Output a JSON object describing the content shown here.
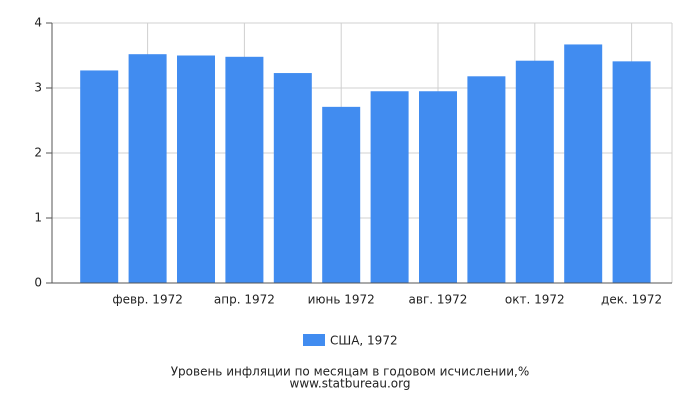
{
  "chart_data": {
    "type": "bar",
    "title": "Уровень инфляции по месяцам в годовом исчислении,%",
    "source": "www.statbureau.org",
    "categories": [
      null,
      "февр. 1972",
      null,
      "апр. 1972",
      null,
      "июнь 1972",
      null,
      "авг. 1972",
      null,
      "окт. 1972",
      null,
      "дек. 1972"
    ],
    "series": [
      {
        "name": "США, 1972",
        "color": "#418cf0",
        "values": [
          3.27,
          3.52,
          3.5,
          3.48,
          3.23,
          2.71,
          2.95,
          2.95,
          3.18,
          3.42,
          3.67,
          3.41
        ]
      }
    ],
    "ylim": [
      0,
      4
    ],
    "yticks": [
      0,
      1,
      2,
      3,
      4
    ],
    "grid": true
  }
}
